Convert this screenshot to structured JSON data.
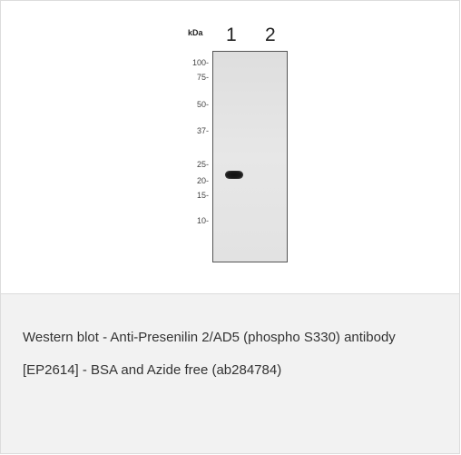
{
  "blot": {
    "unit_label": "kDa",
    "lanes": [
      "1",
      "2"
    ],
    "markers": [
      "100-",
      "75-",
      "50-",
      "37-",
      "25-",
      "20-",
      "15-",
      "10-"
    ]
  },
  "caption": {
    "text": "Western blot - Anti-Presenilin 2/AD5 (phospho S330) antibody [EP2614] - BSA and Azide free (ab284784)"
  }
}
